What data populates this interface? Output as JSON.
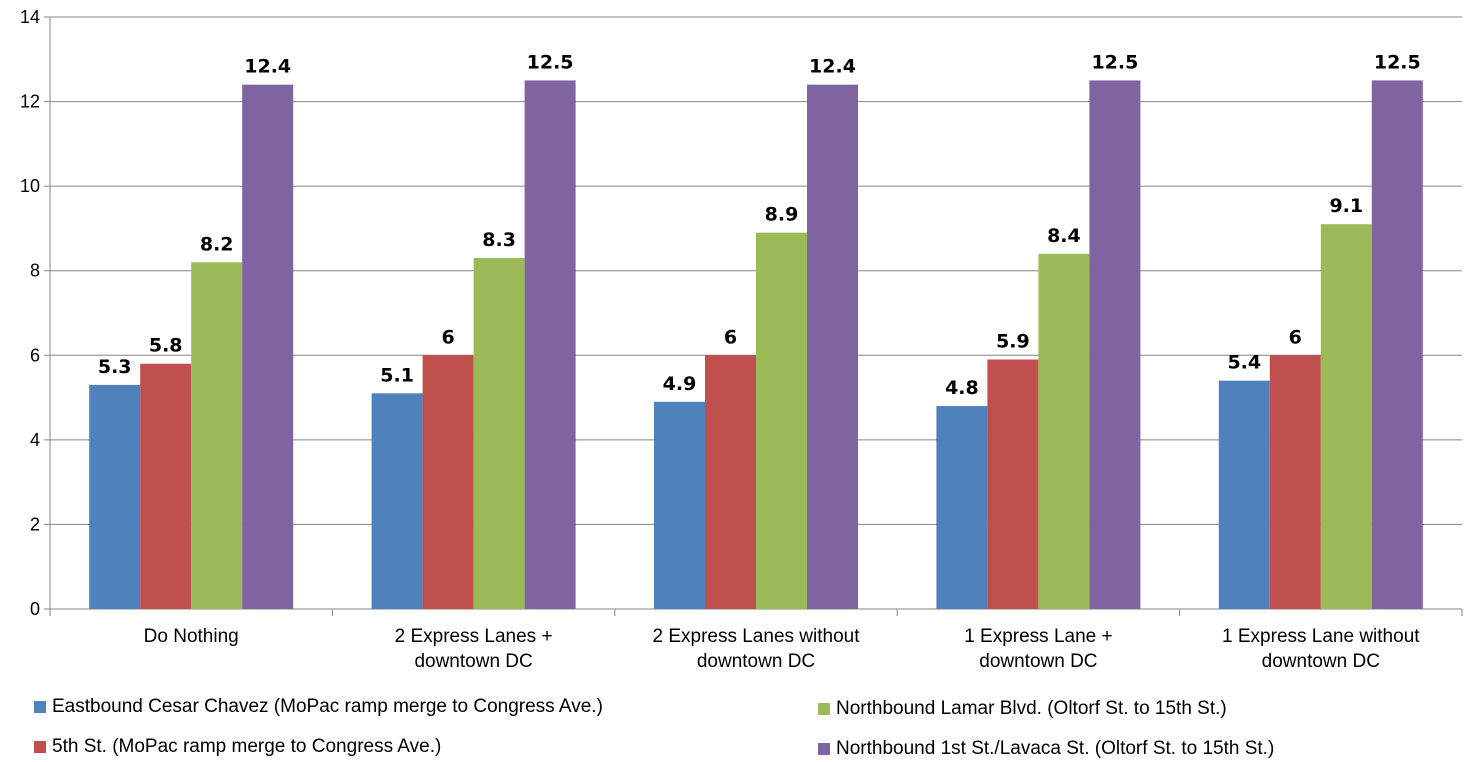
{
  "chart_data": {
    "type": "bar",
    "categories": [
      [
        "Do Nothing"
      ],
      [
        "2 Express Lanes +",
        "downtown DC"
      ],
      [
        "2 Express Lanes without",
        "downtown DC"
      ],
      [
        "1 Express Lane +",
        "downtown DC"
      ],
      [
        "1 Express Lane without",
        "downtown DC"
      ]
    ],
    "series": [
      {
        "name": "Eastbound Cesar Chavez (MoPac ramp merge to Congress Ave.)",
        "color": "#4F81BD",
        "values": [
          5.3,
          5.1,
          4.9,
          4.8,
          5.4
        ]
      },
      {
        "name": "5th St. (MoPac ramp merge to Congress Ave.)",
        "color": "#C0504D",
        "values": [
          5.8,
          6,
          6,
          5.9,
          6
        ]
      },
      {
        "name": "Northbound Lamar Blvd. (Oltorf St. to 15th St.)",
        "color": "#9BBB59",
        "values": [
          8.2,
          8.3,
          8.9,
          8.4,
          9.1
        ]
      },
      {
        "name": "Northbound 1st St./Lavaca St. (Oltorf St. to 15th St.)",
        "color": "#8064A2",
        "values": [
          12.4,
          12.5,
          12.4,
          12.5,
          12.5
        ]
      }
    ],
    "title": "",
    "xlabel": "",
    "ylabel": "",
    "ylim": [
      0,
      14
    ],
    "yticks": [
      0,
      2,
      4,
      6,
      8,
      10,
      12,
      14
    ],
    "grid": true,
    "gridline_color": "#868686",
    "legend_position": "bottom"
  }
}
